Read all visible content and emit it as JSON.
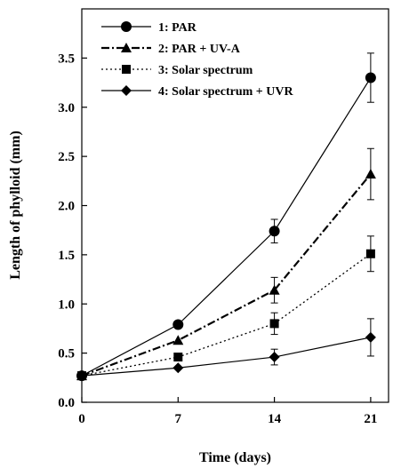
{
  "chart_data": {
    "type": "line",
    "xlabel": "Time (days)",
    "ylabel": "Length of phylloid (mm)",
    "x": [
      0,
      7,
      14,
      21
    ],
    "xlim": [
      0,
      22.3
    ],
    "ylim": [
      0,
      4.0
    ],
    "xticks": [
      "0",
      "7",
      "14",
      "21"
    ],
    "yticks": [
      "0.0",
      "0.5",
      "1.0",
      "1.5",
      "2.0",
      "2.5",
      "3.0",
      "3.5"
    ],
    "grid": false,
    "legend_position": "top-left",
    "series": [
      {
        "name": "1: PAR",
        "marker": "circle",
        "line_style": "solid",
        "values": [
          0.27,
          0.79,
          1.74,
          3.3
        ],
        "errors": [
          0.02,
          0.03,
          0.12,
          0.25
        ]
      },
      {
        "name": "2: PAR + UV-A",
        "marker": "triangle",
        "line_style": "dash-dot",
        "values": [
          0.27,
          0.63,
          1.14,
          2.32
        ],
        "errors": [
          0.02,
          0.04,
          0.13,
          0.26
        ]
      },
      {
        "name": "3: Solar spectrum",
        "marker": "square",
        "line_style": "dotted",
        "values": [
          0.27,
          0.46,
          0.8,
          1.51
        ],
        "errors": [
          0.02,
          0.03,
          0.11,
          0.18
        ]
      },
      {
        "name": "4: Solar spectrum + UVR",
        "marker": "diamond",
        "line_style": "solid",
        "values": [
          0.27,
          0.35,
          0.46,
          0.66
        ],
        "errors": [
          0.02,
          0.02,
          0.08,
          0.19
        ]
      }
    ]
  }
}
